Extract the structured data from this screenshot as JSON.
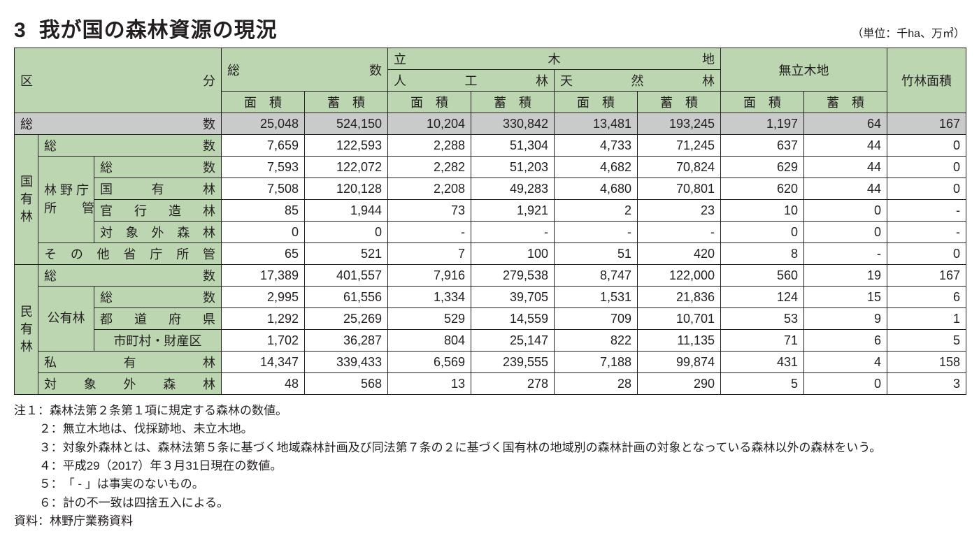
{
  "title_number": "3",
  "title_text": "我が国の森林資源の現況",
  "unit_text": "（単位：千ha、万㎥）",
  "columns": {
    "kubun": "区　　　分",
    "sousuu": "総　　　数",
    "ryuubokuchi": "立　木　地",
    "jinkourin": "人　工　林",
    "tennenrin": "天　然　林",
    "muryuubokuchi": "無立木地",
    "chikurin": "竹林面積",
    "menseki": "面　積",
    "chikuseki": "蓄　積",
    "menseki2": "面　積",
    "chikuseki2": "蓄　積"
  },
  "row_groups": {
    "kokuyuurin_l1": "国",
    "kokuyuurin_l2": "有",
    "kokuyuurin_l3": "林",
    "minyuurin_l1": "民",
    "minyuurin_l2": "有",
    "minyuurin_l3": "林",
    "rinyachou_l1": "林 野 庁",
    "rinyachou_l2": "所　　管",
    "kouyuurin": "公有林"
  },
  "rows": {
    "grand_total": {
      "label": "総　　　数",
      "v": [
        "25,048",
        "524,150",
        "10,204",
        "330,842",
        "13,481",
        "193,245",
        "1,197",
        "64",
        "167"
      ]
    },
    "koku_total": {
      "label": "総　　　数",
      "v": [
        "7,659",
        "122,593",
        "2,288",
        "51,304",
        "4,733",
        "71,245",
        "637",
        "44",
        "0"
      ]
    },
    "rinya_total": {
      "label": "総　　　数",
      "v": [
        "7,593",
        "122,072",
        "2,282",
        "51,203",
        "4,682",
        "70,824",
        "629",
        "44",
        "0"
      ]
    },
    "kokuyuurin": {
      "label": "国　有　林",
      "v": [
        "7,508",
        "120,128",
        "2,208",
        "49,283",
        "4,680",
        "70,801",
        "620",
        "44",
        "0"
      ]
    },
    "kankouzourin": {
      "label": "官 行 造 林",
      "v": [
        "85",
        "1,944",
        "73",
        "1,921",
        "2",
        "23",
        "10",
        "0",
        "-"
      ]
    },
    "taishougai_k": {
      "label": "対象外森林",
      "v": [
        "0",
        "0",
        "-",
        "-",
        "-",
        "-",
        "0",
        "0",
        "-"
      ]
    },
    "sonota_shochou": {
      "label": "その他省庁所管",
      "v": [
        "65",
        "521",
        "7",
        "100",
        "51",
        "420",
        "8",
        "-",
        "0"
      ]
    },
    "min_total": {
      "label": "総　　　数",
      "v": [
        "17,389",
        "401,557",
        "7,916",
        "279,538",
        "8,747",
        "122,000",
        "560",
        "19",
        "167"
      ]
    },
    "kouyuu_total": {
      "label": "総　　　数",
      "v": [
        "2,995",
        "61,556",
        "1,334",
        "39,705",
        "1,531",
        "21,836",
        "124",
        "15",
        "6"
      ]
    },
    "todoufuken": {
      "label": "都 道 府 県",
      "v": [
        "1,292",
        "25,269",
        "529",
        "14,559",
        "709",
        "10,701",
        "53",
        "9",
        "1"
      ]
    },
    "shichouson": {
      "label": "市町村・財産区",
      "v": [
        "1,702",
        "36,287",
        "804",
        "25,147",
        "822",
        "11,135",
        "71",
        "6",
        "5"
      ]
    },
    "shiyuurin": {
      "label": "私　　有　　林",
      "v": [
        "14,347",
        "339,433",
        "6,569",
        "239,555",
        "7,188",
        "99,874",
        "431",
        "4",
        "158"
      ]
    },
    "taishougai_m": {
      "label": "対 象 外 森 林",
      "v": [
        "48",
        "568",
        "13",
        "278",
        "28",
        "290",
        "5",
        "0",
        "3"
      ]
    }
  },
  "notes": [
    {
      "label": "注１：",
      "text": "森林法第２条第１項に規定する森林の数値。"
    },
    {
      "label": "２：",
      "text": "無立木地は、伐採跡地、未立木地。"
    },
    {
      "label": "３：",
      "text": "対象外森林とは、森林法第５条に基づく地域森林計画及び同法第７条の２に基づく国有林の地域別の森林計画の対象となっている森林以外の森林をいう。"
    },
    {
      "label": "４：",
      "text": "平成29（2017）年３月31日現在の数値。"
    },
    {
      "label": "５：",
      "text": "「 - 」は事実のないもの。"
    },
    {
      "label": "６：",
      "text": "計の不一致は四捨五入による。"
    }
  ],
  "source_label": "資料：",
  "source_text": "林野庁業務資料",
  "colors": {
    "header_bg": "#bdd6b2",
    "grand_bg": "#c9caca",
    "border": "#231f20",
    "text": "#231f20",
    "background": "#ffffff"
  },
  "typography": {
    "title_fontsize": 30,
    "table_fontsize": 18,
    "notes_fontsize": 17
  }
}
